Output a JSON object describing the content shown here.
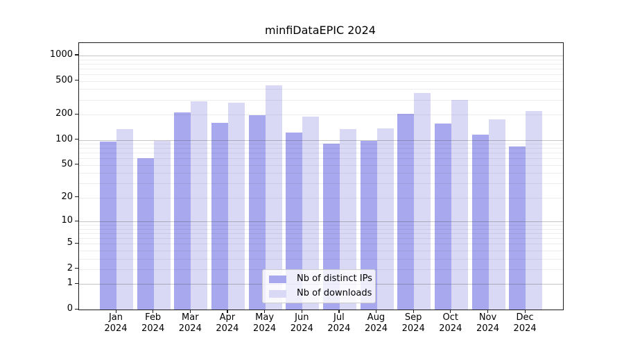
{
  "title": "minfiDataEPIC 2024",
  "chart_data": {
    "type": "bar",
    "title": "minfiDataEPIC 2024",
    "categories": [
      "Jan 2024",
      "Feb 2024",
      "Mar 2024",
      "Apr 2024",
      "May 2024",
      "Jun 2024",
      "Jul 2024",
      "Aug 2024",
      "Sep 2024",
      "Oct 2024",
      "Nov 2024",
      "Dec 2024"
    ],
    "series": [
      {
        "name": "Nb of distinct IPs",
        "color": "#a8a8ee",
        "values": [
          95,
          60,
          210,
          158,
          195,
          123,
          90,
          97,
          205,
          155,
          115,
          83
        ]
      },
      {
        "name": "Nb of downloads",
        "color": "#d9d9f6",
        "values": [
          135,
          97,
          285,
          275,
          445,
          190,
          135,
          137,
          360,
          300,
          175,
          220
        ]
      }
    ],
    "xlabel": "",
    "ylabel": "",
    "yscale": "log1p",
    "yticks": [
      0,
      1,
      2,
      5,
      10,
      20,
      50,
      100,
      200,
      500,
      1000
    ],
    "ytick_labels": [
      "0",
      "1",
      "2",
      "5",
      "10",
      "20",
      "50",
      "100",
      "200",
      "500",
      "1000"
    ],
    "ylim": [
      0,
      1390
    ],
    "grid": "horizontal major and minor, drawn above bars",
    "legend_position": "lower center",
    "grid_major_values": [
      1,
      10,
      100,
      1000
    ],
    "grid_minor_values": [
      2,
      3,
      4,
      5,
      6,
      7,
      8,
      9,
      20,
      30,
      40,
      50,
      60,
      70,
      80,
      90,
      200,
      300,
      400,
      500,
      600,
      700,
      800,
      900
    ]
  }
}
